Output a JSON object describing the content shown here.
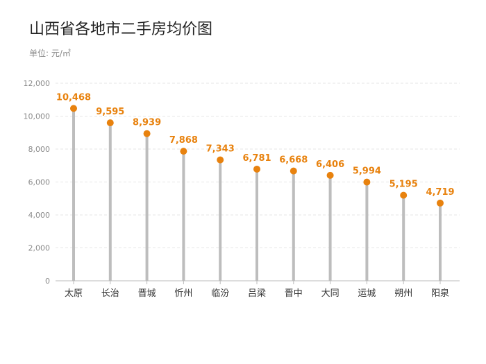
{
  "title": "山西省各地市二手房均价图",
  "unit_label": "单位: 元/㎡",
  "colors": {
    "accent": "#E8820E",
    "stem": "#BDBDBD",
    "grid": "#E6E6E6",
    "axis": "#BBBBBB"
  },
  "chart_data": {
    "type": "lollipop",
    "categories": [
      "太原",
      "长治",
      "晋城",
      "忻州",
      "临汾",
      "吕梁",
      "晋中",
      "大同",
      "运城",
      "朔州",
      "阳泉"
    ],
    "values": [
      10468,
      9595,
      8939,
      7868,
      7343,
      6781,
      6668,
      6406,
      5994,
      5195,
      4719
    ],
    "value_labels": [
      "10,468",
      "9,595",
      "8,939",
      "7,868",
      "7,343",
      "6,781",
      "6,668",
      "6,406",
      "5,994",
      "5,195",
      "4,719"
    ],
    "yticks": [
      0,
      2000,
      4000,
      6000,
      8000,
      10000,
      12000
    ],
    "ytick_labels": [
      "0",
      "2,000",
      "4,000",
      "6,000",
      "8,000",
      "10,000",
      "12,000"
    ],
    "ylim": [
      0,
      12000
    ],
    "grid": true
  }
}
